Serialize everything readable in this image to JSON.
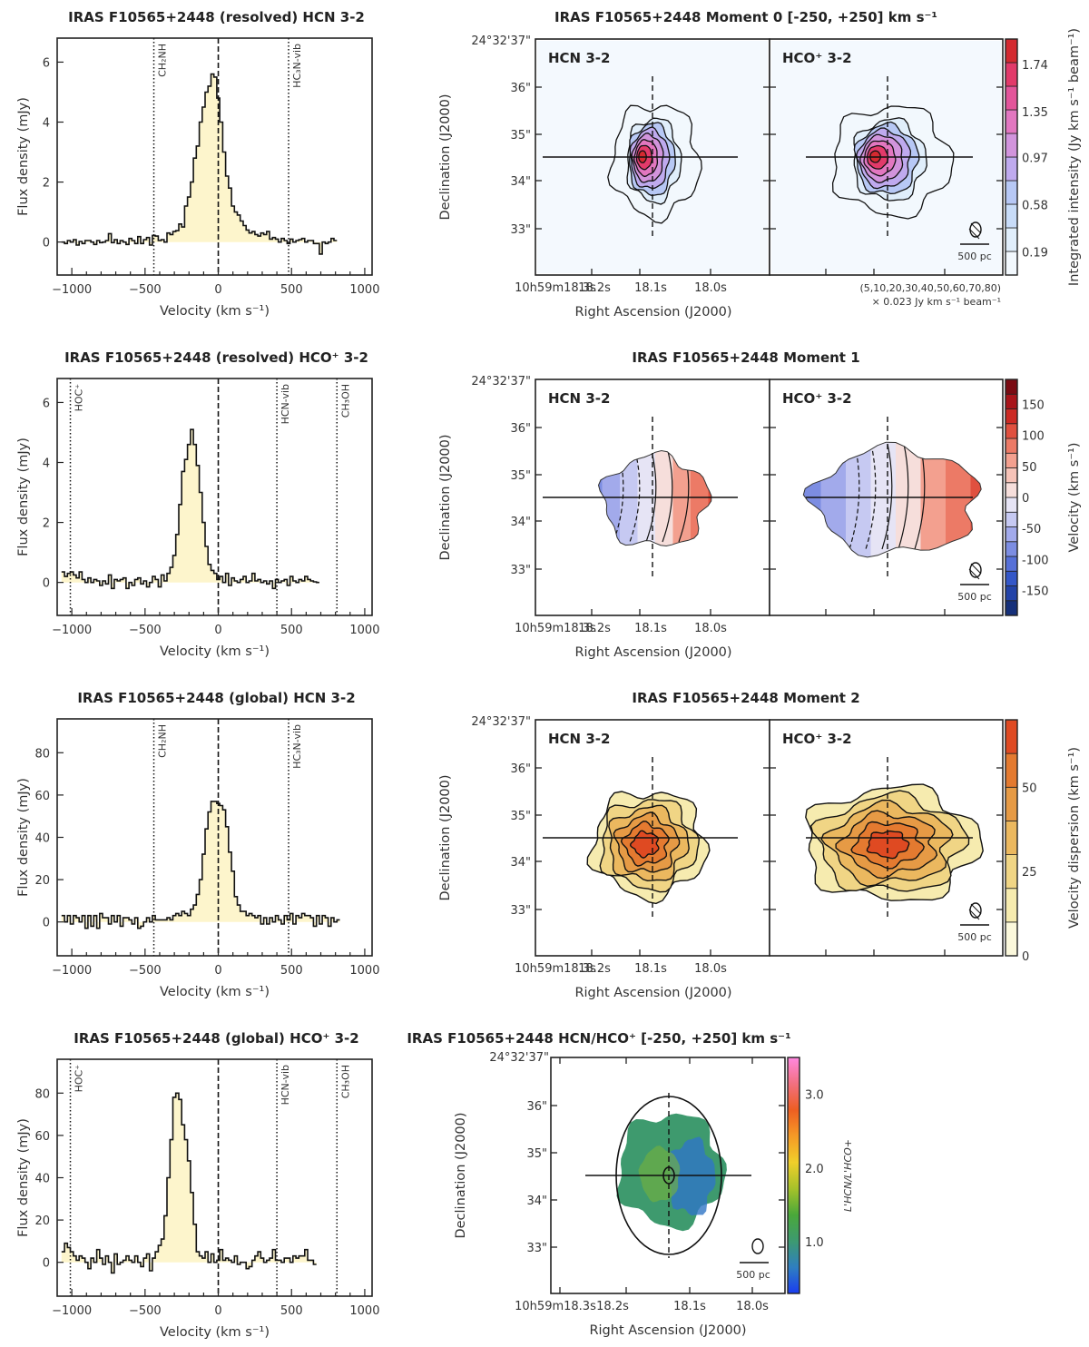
{
  "chart_data": {
    "spectra": [
      {
        "type": "line",
        "style": "step-filled",
        "title": "IRAS F10565+2448  (resolved)  HCN 3-2",
        "xlabel": "Velocity (km s⁻¹)",
        "ylabel": "Flux density (mJy)",
        "xlim": [
          -1100,
          1050
        ],
        "ylim": [
          -1.1,
          6.8
        ],
        "xticks": [
          -1000,
          -500,
          0,
          500,
          1000
        ],
        "yticks": [
          0,
          2,
          4,
          6
        ],
        "vlines": [
          {
            "x": -440,
            "label": "CH₂NH"
          },
          {
            "x": 480,
            "label": "HC₃N-vib"
          }
        ],
        "zero_line": 0,
        "x_start": -1060,
        "x_step": 20,
        "y": [
          0.0,
          -0.05,
          0.05,
          0.0,
          0.08,
          -0.1,
          0.02,
          -0.05,
          0.05,
          0.05,
          0.0,
          -0.08,
          0.05,
          -0.02,
          0.0,
          0.05,
          0.28,
          -0.02,
          0.08,
          -0.05,
          0.05,
          0.0,
          -0.08,
          0.12,
          0.05,
          -0.05,
          0.18,
          -0.05,
          0.08,
          0.15,
          -0.1,
          0.22,
          0.2,
          0.05,
          0.08,
          0.0,
          0.3,
          0.25,
          0.35,
          0.38,
          0.6,
          0.5,
          1.2,
          1.5,
          2.0,
          2.8,
          3.2,
          4.0,
          4.5,
          5.0,
          5.2,
          5.6,
          5.5,
          4.8,
          4.0,
          3.0,
          2.2,
          1.8,
          1.2,
          1.0,
          0.9,
          0.7,
          0.55,
          0.4,
          0.3,
          0.35,
          0.25,
          0.2,
          0.3,
          0.25,
          0.35,
          0.1,
          0.15,
          0.1,
          0.0,
          0.12,
          0.05,
          -0.05,
          0.1,
          0.0,
          0.05,
          0.08,
          0.12,
          0.0,
          0.05,
          0.05,
          -0.05,
          -0.05,
          -0.4,
          0.0,
          -0.05,
          0.0,
          0.12,
          0.05
        ],
        "fill_color": "#fdf5cc"
      },
      {
        "type": "line",
        "style": "step-filled",
        "title": "IRAS F10565+2448  (resolved)  HCO⁺ 3-2",
        "xlabel": "Velocity (km s⁻¹)",
        "ylabel": "Flux density (mJy)",
        "xlim": [
          -1100,
          1050
        ],
        "ylim": [
          -1.1,
          6.8
        ],
        "xticks": [
          -1000,
          -500,
          0,
          500,
          1000
        ],
        "yticks": [
          0,
          2,
          4,
          6
        ],
        "vlines": [
          {
            "x": -1010,
            "label": "HOC⁺"
          },
          {
            "x": 400,
            "label": "HCN-vib"
          },
          {
            "x": 810,
            "label": "CH₃OH"
          }
        ],
        "zero_line": 0,
        "x_start": -1060,
        "x_step": 20,
        "y": [
          0.35,
          0.2,
          0.3,
          0.35,
          0.25,
          0.15,
          0.35,
          0.1,
          0.0,
          0.15,
          0.0,
          0.1,
          0.05,
          -0.1,
          0.05,
          -0.05,
          0.25,
          -0.2,
          0.1,
          0.05,
          0.1,
          0.15,
          -0.2,
          0.0,
          -0.1,
          0.1,
          0.15,
          -0.05,
          0.05,
          -0.15,
          0.0,
          0.2,
          0.1,
          -0.15,
          0.25,
          0.05,
          0.3,
          0.5,
          0.9,
          1.6,
          2.6,
          3.7,
          4.1,
          4.6,
          5.1,
          4.6,
          3.9,
          3.0,
          2.0,
          1.2,
          0.6,
          0.4,
          0.3,
          0.1,
          0.2,
          0.0,
          0.3,
          -0.1,
          0.15,
          0.05,
          0.0,
          0.1,
          0.2,
          0.0,
          0.05,
          0.3,
          0.05,
          0.1,
          0.0,
          0.05,
          -0.05,
          0.05,
          -0.2,
          0.1,
          0.0,
          0.05,
          0.1,
          -0.1,
          0.2,
          0.05,
          0.0,
          0.1,
          0.05,
          0.2,
          0.1,
          0.05,
          0.02,
          0.0
        ],
        "fill_color": "#fdf5cc"
      },
      {
        "type": "line",
        "style": "step-filled",
        "title": "IRAS F10565+2448  (global)  HCN 3-2",
        "xlabel": "Velocity (km s⁻¹)",
        "ylabel": "Flux density (mJy)",
        "xlim": [
          -1100,
          1050
        ],
        "ylim": [
          -16,
          96
        ],
        "xticks": [
          -1000,
          -500,
          0,
          500,
          1000
        ],
        "yticks": [
          0,
          20,
          40,
          60,
          80
        ],
        "vlines": [
          {
            "x": -440,
            "label": "CH₂NH"
          },
          {
            "x": 480,
            "label": "HC₃N-vib"
          }
        ],
        "zero_line": 0,
        "x_start": -1060,
        "x_step": 20,
        "y": [
          3,
          0,
          3,
          -1,
          3,
          2,
          0,
          3,
          -3,
          3,
          -2,
          3,
          -3,
          4,
          2,
          2,
          -1,
          3,
          0,
          3,
          -2,
          2,
          2,
          1,
          -1,
          2,
          -3,
          -2,
          0,
          2,
          0,
          3,
          1,
          1,
          1,
          1,
          2,
          1,
          3,
          4,
          3,
          5,
          4,
          3,
          6,
          8,
          13,
          20,
          32,
          44,
          52,
          57,
          57,
          56,
          55,
          53,
          45,
          33,
          24,
          12,
          8,
          5,
          5,
          3,
          4,
          3,
          2,
          3,
          -1,
          2,
          -1,
          2,
          0,
          3,
          1,
          -1,
          3,
          1,
          4,
          -1,
          3,
          2,
          4,
          3,
          3,
          2,
          -2,
          3,
          -1,
          3,
          2,
          -2,
          2,
          0,
          1
        ],
        "fill_color": "#fdf5cc"
      },
      {
        "type": "line",
        "style": "step-filled",
        "title": "IRAS F10565+2448  (global)  HCO⁺ 3-2",
        "xlabel": "Velocity (km s⁻¹)",
        "ylabel": "Flux density (mJy)",
        "xlim": [
          -1100,
          1050
        ],
        "ylim": [
          -16,
          96
        ],
        "xticks": [
          -1000,
          -500,
          0,
          500,
          1000
        ],
        "yticks": [
          0,
          20,
          40,
          60,
          80
        ],
        "vlines": [
          {
            "x": -1010,
            "label": "HOC⁺"
          },
          {
            "x": 400,
            "label": "HCN-vib"
          },
          {
            "x": 810,
            "label": "CH₃OH"
          }
        ],
        "zero_line": 0,
        "x_start": -1060,
        "x_step": 20,
        "y": [
          5,
          9,
          7,
          5,
          3,
          1,
          3,
          2,
          0,
          -3,
          2,
          0,
          6,
          2,
          -1,
          3,
          0,
          -5,
          4,
          -1,
          0,
          1,
          3,
          1,
          0,
          3,
          0,
          -2,
          2,
          4,
          -4,
          2,
          5,
          8,
          11,
          22,
          40,
          58,
          78,
          80,
          77,
          65,
          58,
          48,
          33,
          18,
          5,
          3,
          2,
          5,
          0,
          4,
          0,
          1,
          6,
          1,
          2,
          1,
          0,
          3,
          -1,
          0,
          0,
          -3,
          -2,
          1,
          3,
          5,
          2,
          0,
          1,
          2,
          6,
          1,
          1,
          0,
          2,
          2,
          0,
          3,
          2,
          3,
          3,
          6,
          1,
          1,
          -1
        ],
        "fill_color": "#fdf5cc"
      }
    ],
    "maps": [
      {
        "type": "heatmap",
        "title": "IRAS F10565+2448  Moment 0  [-250, +250] km s⁻¹",
        "panels": [
          "HCN 3-2",
          "HCO⁺ 3-2"
        ],
        "xlabel": "Right Ascension (J2000)",
        "ylabel": "Declination (J2000)",
        "dec_origin": "24°32'37\"",
        "yticks": [
          "36\"",
          "35\"",
          "34\"",
          "33\""
        ],
        "xticks": [
          "10h59m18.3s",
          "18.2s",
          "18.1s",
          "18.0s"
        ],
        "colorbar_label": "Integrated intensity (Jy km s⁻¹ beam⁻¹)",
        "colorbar_ticks": [
          "1.74",
          "1.35",
          "0.97",
          "0.58",
          "0.19"
        ],
        "colorbar_range": [
          0,
          1.95
        ],
        "colormap": [
          "#f2f8fd",
          "#e0eefb",
          "#c8dcf8",
          "#b7c8f5",
          "#bfaaee",
          "#d294dc",
          "#e277c0",
          "#e3559a",
          "#e23a6a",
          "#d42a30"
        ],
        "contour_levels": "(5,10,20,30,40,50,60,70,80)",
        "contour_unit": "× 0.023 Jy km s⁻¹ beam⁻¹",
        "scalebar": "500 pc"
      },
      {
        "type": "heatmap",
        "title": "IRAS F10565+2448  Moment 1",
        "panels": [
          "HCN 3-2",
          "HCO⁺ 3-2"
        ],
        "xlabel": "Right Ascension (J2000)",
        "ylabel": "Declination (J2000)",
        "dec_origin": "24°32'37\"",
        "yticks": [
          "36\"",
          "35\"",
          "34\"",
          "33\""
        ],
        "xticks": [
          "10h59m18.3s",
          "18.2s",
          "18.1s",
          "18.0s"
        ],
        "colorbar_label": "Velocity (km s⁻¹)",
        "colorbar_ticks": [
          "150",
          "100",
          "50",
          "0",
          "-50",
          "-100",
          "-150"
        ],
        "colorbar_range": [
          -190,
          190
        ],
        "colormap": [
          "#16307a",
          "#2343a8",
          "#3457c8",
          "#5670d8",
          "#7c8de2",
          "#a2aaeb",
          "#c6c9f2",
          "#e6e4f5",
          "#f6dedb",
          "#f6c3b8",
          "#f3a08f",
          "#ec7a66",
          "#e0503f",
          "#cc2a24",
          "#a8141a",
          "#7a0a12"
        ],
        "scalebar": "500 pc"
      },
      {
        "type": "heatmap",
        "title": "IRAS F10565+2448  Moment 2",
        "panels": [
          "HCN 3-2",
          "HCO⁺ 3-2"
        ],
        "xlabel": "Right Ascension (J2000)",
        "ylabel": "Declination (J2000)",
        "dec_origin": "24°32'37\"",
        "yticks": [
          "36\"",
          "35\"",
          "34\"",
          "33\""
        ],
        "xticks": [
          "10h59m18.3s",
          "18.2s",
          "18.1s",
          "18.0s"
        ],
        "colorbar_label": "Velocity dispersion (km s⁻¹)",
        "colorbar_ticks": [
          "50",
          "25",
          "0"
        ],
        "colorbar_range": [
          0,
          70
        ],
        "colormap": [
          "#fbf8dc",
          "#f6ebaf",
          "#f0d585",
          "#ebb85f",
          "#e69a45",
          "#e47a30",
          "#df4a22"
        ],
        "scalebar": "500 pc"
      },
      {
        "type": "heatmap",
        "title": "IRAS F10565+2448  HCN/HCO⁺  [-250, +250] km s⁻¹",
        "xlabel": "Right Ascension (J2000)",
        "ylabel": "Declination (J2000)",
        "dec_origin": "24°32'37\"",
        "yticks": [
          "36\"",
          "35\"",
          "34\"",
          "33\""
        ],
        "xticks": [
          "10h59m18.3s",
          "18.2s",
          "18.1s",
          "18.0s"
        ],
        "colorbar_label": "L'HCN/L'HCO+",
        "colorbar_ticks": [
          "3.0",
          "2.0",
          "1.0"
        ],
        "colorbar_range": [
          0.3,
          3.5
        ],
        "colormap": [
          "#1a3cf0",
          "#2f7fc0",
          "#3d9a70",
          "#4aa83a",
          "#a6c22a",
          "#f0cf2a",
          "#f59a26",
          "#ee5e22",
          "#f27080",
          "#ff88e0"
        ],
        "scalebar": "500 pc"
      }
    ]
  }
}
